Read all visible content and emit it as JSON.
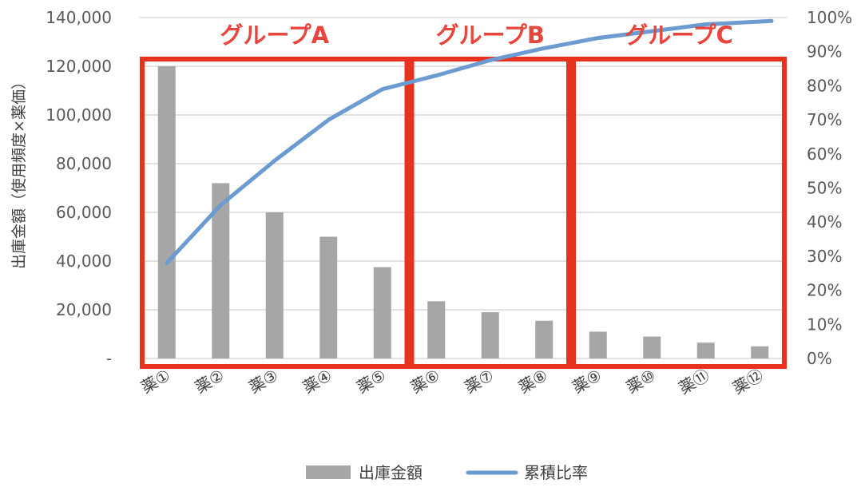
{
  "chart_data": {
    "type": "bar",
    "categories": [
      "薬①",
      "薬②",
      "薬③",
      "薬④",
      "薬⑤",
      "薬⑥",
      "薬⑦",
      "薬⑧",
      "薬⑨",
      "薬⑩",
      "薬⑪",
      "薬⑫"
    ],
    "series": [
      {
        "name": "出庫金額",
        "type": "bar",
        "axis": "left",
        "color": "#a6a6a6",
        "values": [
          120000,
          72000,
          60000,
          50000,
          37500,
          23500,
          19000,
          15500,
          11000,
          9000,
          6500,
          5000
        ]
      },
      {
        "name": "累積比率",
        "type": "line",
        "axis": "right",
        "color": "#6b9bd1",
        "values": [
          0.28,
          0.45,
          0.58,
          0.7,
          0.79,
          0.83,
          0.875,
          0.91,
          0.94,
          0.96,
          0.98,
          0.99
        ]
      }
    ],
    "ylabel": "出庫金額（使用頻度×薬価）",
    "ylim": [
      0,
      140000
    ],
    "yticks": [
      "-",
      "20,000",
      "40,000",
      "60,000",
      "80,000",
      "100,000",
      "120,000",
      "140,000"
    ],
    "y2lim": [
      0,
      1
    ],
    "y2ticks": [
      "0%",
      "10%",
      "20%",
      "30%",
      "40%",
      "50%",
      "60%",
      "70%",
      "80%",
      "90%",
      "100%"
    ],
    "grid": true,
    "legend_position": "bottom",
    "groups": [
      {
        "label": "グループA",
        "start": 0,
        "end": 4
      },
      {
        "label": "グループB",
        "start": 5,
        "end": 7
      },
      {
        "label": "グループC",
        "start": 8,
        "end": 11
      }
    ],
    "group_box_color": "#e8321e"
  }
}
